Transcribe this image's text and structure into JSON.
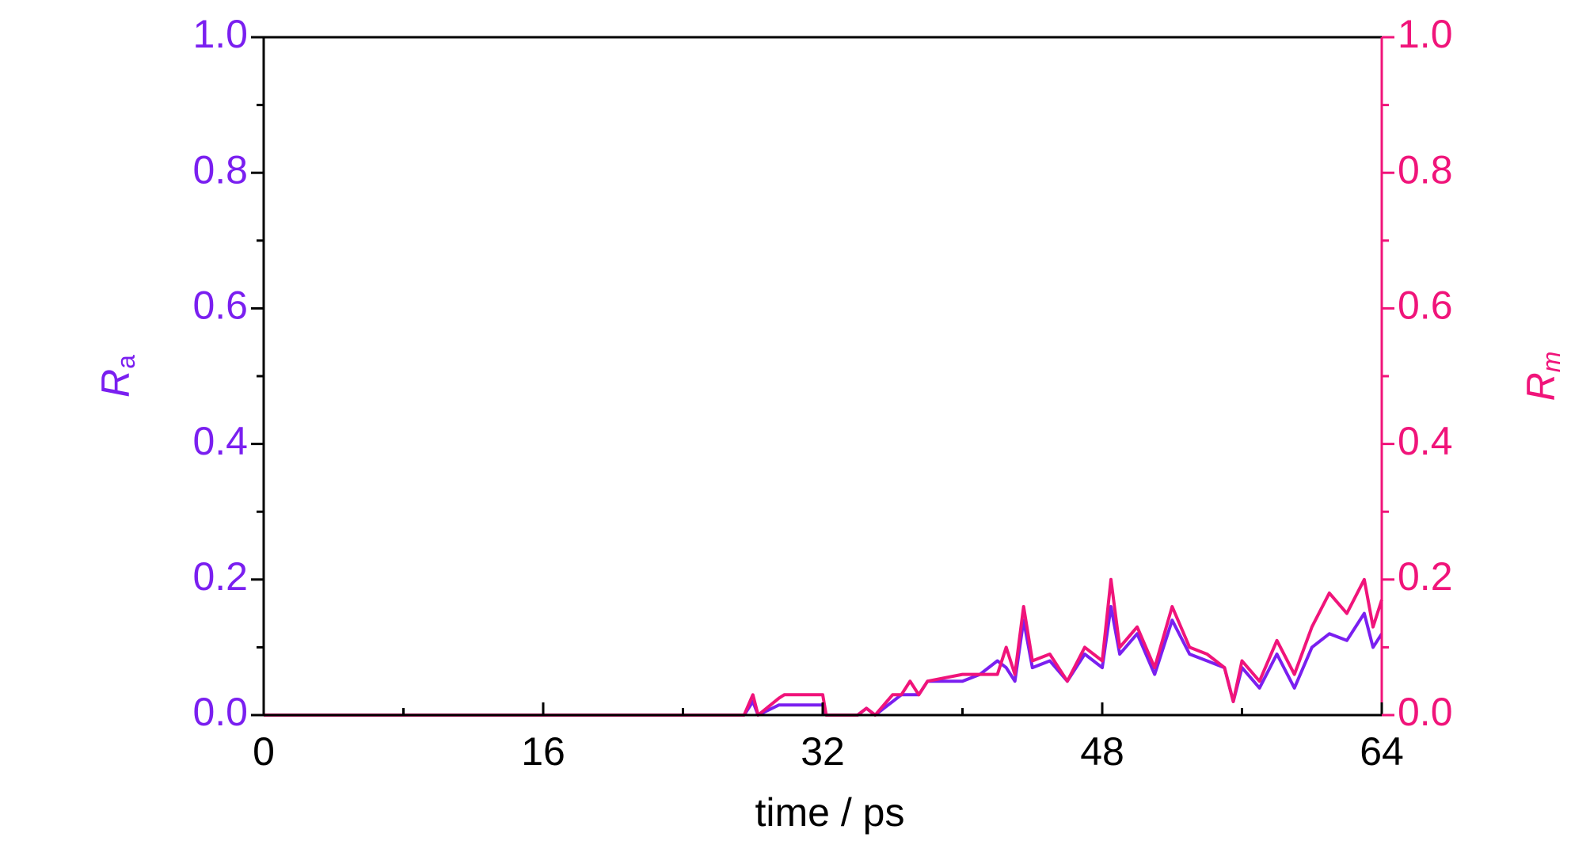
{
  "chart_data": {
    "type": "line",
    "x_label": "time / ps",
    "y_label": "R",
    "y_label_sub": "a",
    "y2_label": "R",
    "y2_label_sub": "m",
    "xlim": [
      0,
      64
    ],
    "xticks": [
      0,
      16,
      32,
      48,
      64
    ],
    "ylim": [
      0,
      1
    ],
    "yticks": [
      {
        "value": 0,
        "label": "0.0"
      },
      {
        "value": 0.2,
        "label": "0.2"
      },
      {
        "value": 0.4,
        "label": "0.4"
      },
      {
        "value": 0.6,
        "label": "0.6"
      },
      {
        "value": 0.8,
        "label": "0.8"
      },
      {
        "value": 1,
        "label": "1.0"
      }
    ],
    "y2lim": [
      0,
      1
    ],
    "y2ticks": [
      {
        "value": 0,
        "label": "0.0"
      },
      {
        "value": 0.2,
        "label": "0.2"
      },
      {
        "value": 0.4,
        "label": "0.4"
      },
      {
        "value": 0.6,
        "label": "0.6"
      },
      {
        "value": 0.8,
        "label": "0.8"
      },
      {
        "value": 1,
        "label": "1.0"
      }
    ],
    "y_color": "#7a1ff0",
    "y2_color": "#f0147a",
    "x": [
      0,
      27.5,
      28,
      28.3,
      29.5,
      29.8,
      32,
      32.2,
      34,
      34.5,
      35,
      35.5,
      36,
      36.5,
      37,
      37.5,
      38,
      40,
      41,
      42,
      42.5,
      43,
      43.5,
      44,
      45,
      46,
      47,
      48,
      48.5,
      49,
      50,
      51,
      52,
      53,
      54,
      55,
      55.5,
      56,
      57,
      58,
      59,
      60,
      61,
      62,
      63,
      63.5,
      64
    ],
    "series": [
      {
        "color": "#7a1ff0",
        "values": [
          0,
          0,
          0.02,
          0,
          0.015,
          0.015,
          0.015,
          0,
          0,
          0.01,
          0,
          0.01,
          0.02,
          0.03,
          0.03,
          0.03,
          0.05,
          0.05,
          0.06,
          0.08,
          0.07,
          0.05,
          0.14,
          0.07,
          0.08,
          0.05,
          0.09,
          0.07,
          0.16,
          0.09,
          0.12,
          0.06,
          0.14,
          0.09,
          0.08,
          0.07,
          0.02,
          0.07,
          0.04,
          0.09,
          0.04,
          0.1,
          0.12,
          0.11,
          0.15,
          0.1,
          0.12
        ]
      },
      {
        "color": "#f0147a",
        "axis": "y2",
        "values": [
          0,
          0,
          0.03,
          0,
          0.025,
          0.03,
          0.03,
          0,
          0,
          0.01,
          0,
          0.015,
          0.03,
          0.03,
          0.05,
          0.03,
          0.05,
          0.06,
          0.06,
          0.06,
          0.1,
          0.06,
          0.16,
          0.08,
          0.09,
          0.05,
          0.1,
          0.08,
          0.2,
          0.1,
          0.13,
          0.07,
          0.16,
          0.1,
          0.09,
          0.07,
          0.02,
          0.08,
          0.05,
          0.11,
          0.06,
          0.13,
          0.18,
          0.15,
          0.2,
          0.13,
          0.17
        ]
      }
    ]
  }
}
